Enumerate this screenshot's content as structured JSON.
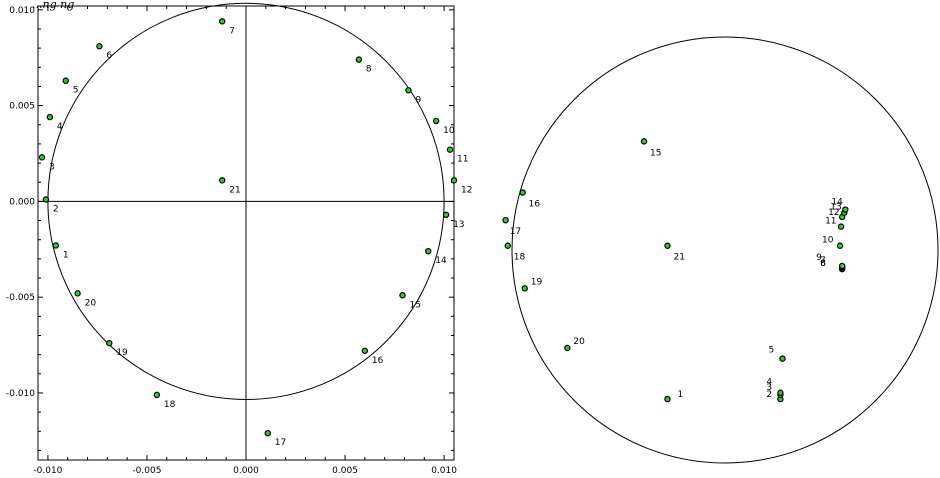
{
  "page_title": "...ng ng",
  "chart_data": [
    {
      "type": "scatter",
      "title": "",
      "xlabel": "",
      "ylabel": "",
      "xlim": [
        -0.0105,
        0.0105
      ],
      "ylim": [
        -0.0135,
        0.0102
      ],
      "grid": false,
      "circle": {
        "center": [
          0,
          0
        ],
        "radius": 0.01
      },
      "axes_lines": true,
      "marker_color": "#33cc33",
      "marker_edge": "#000000",
      "xticks": [
        -0.01,
        -0.005,
        0.0,
        0.005,
        0.01
      ],
      "xtick_labels": [
        "-0.010",
        "-0.005",
        "0.000",
        "0.005",
        "0.010"
      ],
      "yticks": [
        0.01,
        0.005,
        0.0,
        -0.005,
        -0.01
      ],
      "ytick_labels": [
        "0.010",
        "0.005",
        "0.000",
        "-0.005",
        "-0.010"
      ],
      "points": [
        {
          "label": "1",
          "x": -0.0096,
          "y": -0.0023
        },
        {
          "label": "2",
          "x": -0.0101,
          "y": 0.0001
        },
        {
          "label": "3",
          "x": -0.0103,
          "y": 0.0023
        },
        {
          "label": "4",
          "x": -0.0099,
          "y": 0.0044
        },
        {
          "label": "5",
          "x": -0.0091,
          "y": 0.0063
        },
        {
          "label": "6",
          "x": -0.0074,
          "y": 0.0081
        },
        {
          "label": "7",
          "x": -0.0012,
          "y": 0.0094
        },
        {
          "label": "8",
          "x": 0.0057,
          "y": 0.0074
        },
        {
          "label": "9",
          "x": 0.0082,
          "y": 0.0058
        },
        {
          "label": "10",
          "x": 0.0096,
          "y": 0.0042
        },
        {
          "label": "11",
          "x": 0.0103,
          "y": 0.0027
        },
        {
          "label": "12",
          "x": 0.0105,
          "y": 0.0011
        },
        {
          "label": "13",
          "x": 0.0101,
          "y": -0.0007
        },
        {
          "label": "14",
          "x": 0.0092,
          "y": -0.0026
        },
        {
          "label": "15",
          "x": 0.0079,
          "y": -0.0049
        },
        {
          "label": "16",
          "x": 0.006,
          "y": -0.0078
        },
        {
          "label": "17",
          "x": 0.0011,
          "y": -0.0121
        },
        {
          "label": "18",
          "x": -0.0045,
          "y": -0.0101
        },
        {
          "label": "19",
          "x": -0.0069,
          "y": -0.0074
        },
        {
          "label": "20",
          "x": -0.0085,
          "y": -0.0048
        },
        {
          "label": "21",
          "x": -0.0012,
          "y": 0.0011
        }
      ]
    },
    {
      "type": "scatter",
      "title": "",
      "xlabel": "",
      "ylabel": "",
      "xlim": [
        -1,
        1
      ],
      "ylim": [
        -1,
        1
      ],
      "grid": false,
      "axes_lines": false,
      "circle": {
        "center": [
          0,
          0
        ],
        "radius": 1
      },
      "marker_color": "#33cc33",
      "marker_edge": "#000000",
      "points": [
        {
          "label": "1",
          "x": -0.27,
          "y": -0.7
        },
        {
          "label": "2",
          "x": 0.26,
          "y": -0.7
        },
        {
          "label": "3",
          "x": 0.26,
          "y": -0.68
        },
        {
          "label": "4",
          "x": 0.26,
          "y": -0.67
        },
        {
          "label": "5",
          "x": 0.27,
          "y": -0.51
        },
        {
          "label": "6",
          "x": 0.55,
          "y": -0.09
        },
        {
          "label": "7",
          "x": 0.55,
          "y": -0.085
        },
        {
          "label": "8",
          "x": 0.55,
          "y": -0.08
        },
        {
          "label": "9",
          "x": 0.55,
          "y": -0.075
        },
        {
          "label": "10",
          "x": 0.54,
          "y": 0.02
        },
        {
          "label": "11",
          "x": 0.545,
          "y": 0.11
        },
        {
          "label": "12",
          "x": 0.55,
          "y": 0.155
        },
        {
          "label": "13",
          "x": 0.56,
          "y": 0.175
        },
        {
          "label": "14",
          "x": 0.565,
          "y": 0.19
        },
        {
          "label": "15",
          "x": -0.38,
          "y": 0.51
        },
        {
          "label": "16",
          "x": -0.95,
          "y": 0.27
        },
        {
          "label": "17",
          "x": -1.03,
          "y": 0.14
        },
        {
          "label": "18",
          "x": -1.02,
          "y": 0.02
        },
        {
          "label": "19",
          "x": -0.94,
          "y": -0.18
        },
        {
          "label": "20",
          "x": -0.74,
          "y": -0.46
        },
        {
          "label": "21",
          "x": -0.27,
          "y": 0.02
        }
      ],
      "label_offsets": {
        "1": [
          10,
          -2
        ],
        "2": [
          -14,
          -2
        ],
        "3": [
          -14,
          -5
        ],
        "4": [
          -14,
          -8
        ],
        "5": [
          -14,
          -6
        ],
        "6": [
          -22,
          -3
        ],
        "7": [
          -22,
          -5
        ],
        "8": [
          -22,
          -1
        ],
        "9": [
          -26,
          -6
        ],
        "10": [
          -18,
          -3
        ],
        "11": [
          -16,
          -3
        ],
        "12": [
          -14,
          -2
        ],
        "13": [
          -14,
          -3
        ],
        "14": [
          -14,
          -5
        ],
        "15": [
          6,
          14
        ],
        "16": [
          6,
          14
        ],
        "17": [
          4,
          14
        ],
        "18": [
          6,
          14
        ],
        "19": [
          6,
          -4
        ],
        "20": [
          6,
          -4
        ],
        "21": [
          6,
          14
        ]
      }
    }
  ]
}
